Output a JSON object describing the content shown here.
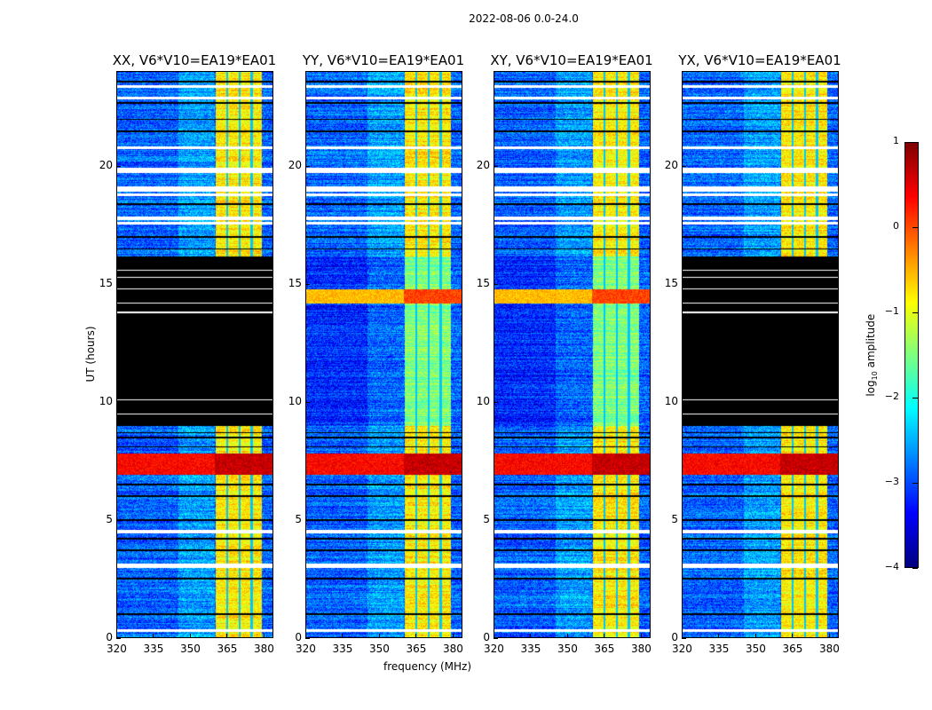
{
  "chart_data": {
    "type": "heatmap",
    "title": "2022-08-06 0.0-24.0",
    "xlabel": "frequency (MHz)",
    "ylabel": "UT (hours)",
    "xlim": [
      320,
      384
    ],
    "ylim": [
      0,
      24
    ],
    "xticks": [
      "320",
      "335",
      "350",
      "365",
      "380"
    ],
    "yticks": [
      "0",
      "5",
      "10",
      "15",
      "20"
    ],
    "colorbar": {
      "label_main": "log",
      "label_sub": "10",
      "label_rest": " amplitude",
      "range": [
        -4,
        1
      ],
      "ticks": [
        "1",
        "0",
        "−1",
        "−2",
        "−3",
        "−4"
      ],
      "colormap": "jet"
    },
    "panels": [
      {
        "title": "XX, V6*V10=EA19*EA01",
        "masked_hours": [
          9.0,
          16.2
        ],
        "mid_band_level": -1.6
      },
      {
        "title": "YY, V6*V10=EA19*EA01",
        "masked_hours": null,
        "mid_band_level": -1.5
      },
      {
        "title": "XY, V6*V10=EA19*EA01",
        "masked_hours": null,
        "mid_band_level": -1.5
      },
      {
        "title": "YX, V6*V10=EA19*EA01",
        "masked_hours": [
          9.0,
          16.2
        ],
        "mid_band_level": -1.6
      }
    ],
    "features": {
      "background_level": -2.9,
      "rfi_band_mhz": [
        360.5,
        379.5
      ],
      "rfi_band_level": -0.8,
      "rfi_band_gaps_mhz": [
        365.2,
        370.2,
        375.2
      ],
      "strong_rfi_hours": [
        [
          6.9,
          7.8,
          0.9
        ],
        [
          14.2,
          14.8,
          0.3
        ]
      ],
      "flagged_white_hours": [
        0.3,
        3.0,
        3.1,
        4.5,
        17.6,
        17.8,
        18.8,
        19.0,
        19.1,
        19.8,
        19.9,
        20.8,
        22.9,
        23.4
      ],
      "flagged_black_hours": [
        1.0,
        2.5,
        3.7,
        4.2,
        5.0,
        6.0,
        6.5,
        8.1,
        8.5,
        8.7,
        16.5,
        17.0,
        18.4,
        21.5,
        22.0,
        22.7,
        23.6
      ]
    }
  }
}
